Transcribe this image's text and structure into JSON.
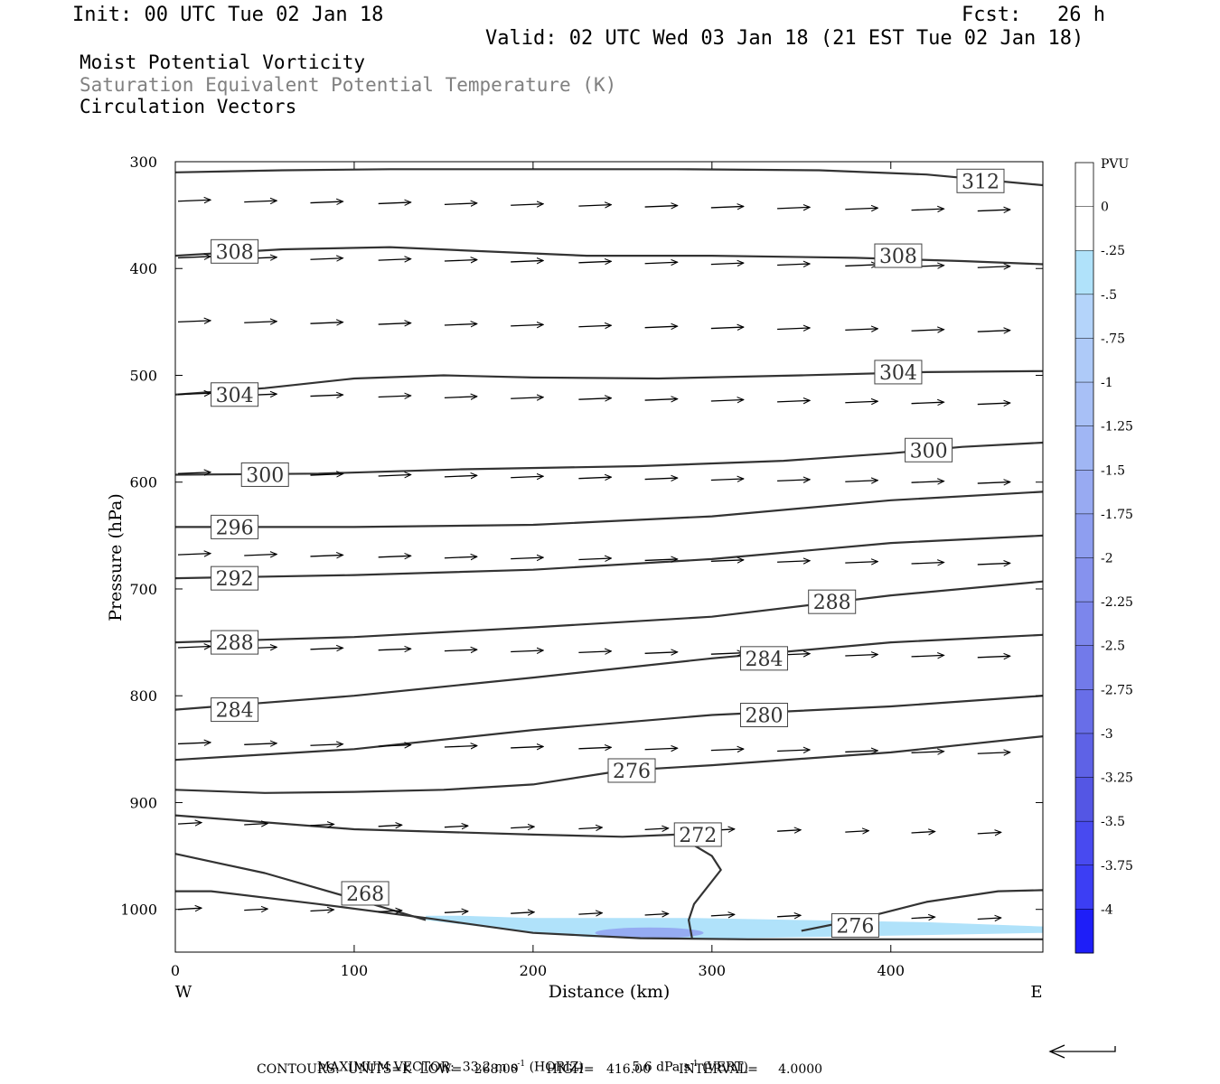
{
  "header": {
    "init": "Init: 00 UTC Tue 02 Jan 18",
    "fcst": "Fcst:   26 h",
    "valid": "Valid: 02 UTC Wed 03 Jan 18 (21 EST Tue 02 Jan 18)",
    "field1": "Moist Potential Vorticity",
    "field2": "Saturation Equivalent Potential Temperature (K)",
    "field3": "Circulation Vectors"
  },
  "footer": {
    "max_label": "MAXIMUM VECTOR:",
    "horiz_val": "33.2",
    "horiz_unit": "m s",
    "horiz_sup": "-1",
    "horiz_tag": "(HORIZ)",
    "vert_val": "5.6",
    "vert_unit": "dPa s",
    "vert_sup": "-1",
    "vert_tag": "(VERT)",
    "contours": "CONTOURS:  UNITS=K  LOW=   268.00       HIGH=   416.00       INTERVAL=     4.0000"
  },
  "chart_data": {
    "type": "line",
    "title": "Moist Potential Vorticity / Saturation Equivalent Potential Temperature (K) / Circulation Vectors",
    "xlabel": "Distance (km)",
    "ylabel": "Pressure (hPa)",
    "xlim": [
      0,
      485
    ],
    "ylim": [
      300,
      1040
    ],
    "y_inverted": true,
    "grid": false,
    "x_ticks": [
      0,
      100,
      200,
      300,
      400
    ],
    "y_ticks": [
      300,
      400,
      500,
      600,
      700,
      800,
      900,
      1000
    ],
    "x_left_label": "W",
    "x_right_label": "E",
    "colorbar": {
      "title": "PVU",
      "labels": [
        "0",
        "-.25",
        "-.5",
        "-.75",
        "-1",
        "-1.25",
        "-1.5",
        "-1.75",
        "-2",
        "-2.25",
        "-2.5",
        "-2.75",
        "-3",
        "-3.25",
        "-3.5",
        "-3.75",
        "-4"
      ],
      "colors": [
        "#ffffff",
        "#ffffff",
        "#b0e2fa",
        "#b4d4fa",
        "#aecaf8",
        "#a8c0f6",
        "#a0b6f4",
        "#98aaf2",
        "#8e9ef0",
        "#8692ee",
        "#7c86ec",
        "#727aea",
        "#686ee8",
        "#5e62e6",
        "#5456e4",
        "#484af0",
        "#3c3ef4",
        "#1e1ef8"
      ]
    },
    "series": [
      {
        "label": "312",
        "x": [
          0,
          60,
          120,
          200,
          280,
          360,
          420,
          485
        ],
        "y": [
          310,
          308,
          307,
          307,
          307,
          308,
          312,
          322
        ],
        "label_at": [
          437,
          318
        ]
      },
      {
        "label": "308",
        "x": [
          0,
          60,
          120,
          160,
          230,
          300,
          380,
          440,
          485
        ],
        "y": [
          388,
          382,
          380,
          383,
          388,
          388,
          390,
          393,
          396
        ],
        "label_at": [
          20,
          384
        ]
      },
      {
        "label": "308",
        "x": [],
        "y": [],
        "label_at": [
          391,
          388
        ]
      },
      {
        "label": "304",
        "x": [
          0,
          50,
          100,
          150,
          200,
          270,
          350,
          420,
          485
        ],
        "y": [
          518,
          512,
          503,
          500,
          502,
          503,
          500,
          497,
          496
        ],
        "label_at": [
          20,
          518
        ]
      },
      {
        "label": "304",
        "x": [],
        "y": [],
        "label_at": [
          391,
          497
        ]
      },
      {
        "label": "300",
        "x": [
          0,
          80,
          160,
          260,
          340,
          400,
          440,
          485
        ],
        "y": [
          593,
          592,
          588,
          585,
          580,
          573,
          567,
          563
        ],
        "label_at": [
          408,
          570
        ]
      },
      {
        "label": "300",
        "x": [],
        "y": [],
        "label_at": [
          37,
          593
        ]
      },
      {
        "label": "296",
        "x": [
          0,
          100,
          200,
          300,
          400,
          485
        ],
        "y": [
          642,
          642,
          640,
          632,
          617,
          609
        ],
        "label_at": [
          20,
          642
        ]
      },
      {
        "label": "292",
        "x": [
          0,
          100,
          200,
          300,
          400,
          485
        ],
        "y": [
          690,
          687,
          682,
          672,
          657,
          650
        ],
        "label_at": [
          20,
          690
        ]
      },
      {
        "label": "288",
        "x": [
          0,
          100,
          200,
          300,
          400,
          485
        ],
        "y": [
          750,
          745,
          736,
          726,
          706,
          693
        ],
        "label_at": [
          20,
          750
        ]
      },
      {
        "label": "288",
        "x": [],
        "y": [],
        "label_at": [
          354,
          712
        ]
      },
      {
        "label": "284",
        "x": [
          0,
          100,
          200,
          300,
          400,
          485
        ],
        "y": [
          813,
          800,
          783,
          765,
          750,
          743
        ],
        "label_at": [
          20,
          813
        ]
      },
      {
        "label": "284",
        "x": [],
        "y": [],
        "label_at": [
          316,
          765
        ]
      },
      {
        "label": "280",
        "x": [
          0,
          100,
          200,
          300,
          400,
          485
        ],
        "y": [
          860,
          850,
          832,
          818,
          810,
          800
        ],
        "label_at": [
          316,
          818
        ]
      },
      {
        "label": "276",
        "x": [
          0,
          50,
          100,
          150,
          200,
          250,
          300,
          400,
          485
        ],
        "y": [
          888,
          891,
          890,
          888,
          883,
          870,
          865,
          853,
          838
        ],
        "label_at": [
          242,
          870
        ]
      },
      {
        "label": "272",
        "x": [
          0,
          100,
          200,
          250,
          280,
          300,
          305,
          290,
          287,
          289
        ],
        "y": [
          912,
          925,
          930,
          932,
          930,
          950,
          963,
          995,
          1010,
          1028
        ],
        "label_at": [
          279,
          930
        ]
      },
      {
        "label": "268",
        "x": [
          0,
          50,
          100,
          140
        ],
        "y": [
          948,
          966,
          990,
          1010
        ],
        "label_at": [
          93,
          985
        ]
      },
      {
        "label": "276",
        "x": [
          350,
          380,
          420,
          460,
          485
        ],
        "y": [
          1020,
          1010,
          993,
          983,
          982
        ],
        "label_at": [
          367,
          1015
        ]
      },
      {
        "label": "",
        "x": [
          0,
          20,
          80,
          140,
          200,
          260,
          320,
          380,
          440,
          485
        ],
        "y": [
          983,
          983,
          995,
          1008,
          1022,
          1027,
          1028,
          1028,
          1028,
          1028
        ],
        "label_at": null
      }
    ],
    "vector_rows": [
      {
        "y": 337,
        "x": [
          0,
          37,
          74,
          112,
          149,
          186,
          224,
          261,
          298,
          335,
          373,
          410,
          447
        ]
      },
      {
        "y": 390,
        "x": [
          0,
          37,
          74,
          112,
          149,
          186,
          224,
          261,
          298,
          335,
          373,
          410,
          447
        ]
      },
      {
        "y": 450,
        "x": [
          0,
          37,
          74,
          112,
          149,
          186,
          224,
          261,
          298,
          335,
          373,
          410,
          447
        ]
      },
      {
        "y": 518,
        "x": [
          0,
          37,
          74,
          112,
          149,
          186,
          224,
          261,
          298,
          335,
          373,
          410,
          447
        ]
      },
      {
        "y": 592,
        "x": [
          0,
          37,
          74,
          112,
          149,
          186,
          224,
          261,
          298,
          335,
          373,
          410,
          447
        ]
      },
      {
        "y": 668,
        "x": [
          0,
          37,
          74,
          112,
          149,
          186,
          224,
          261,
          298,
          335,
          373,
          410,
          447
        ]
      },
      {
        "y": 755,
        "x": [
          0,
          37,
          74,
          112,
          149,
          186,
          224,
          261,
          298,
          335,
          373,
          410,
          447
        ]
      },
      {
        "y": 845,
        "x": [
          0,
          37,
          74,
          112,
          149,
          186,
          224,
          261,
          298,
          335,
          373,
          410,
          447
        ]
      },
      {
        "y": 920,
        "x": [
          0,
          37,
          74,
          112,
          149,
          186,
          224,
          261,
          298,
          335,
          373,
          410,
          447
        ]
      },
      {
        "y": 1000,
        "x": [
          0,
          37,
          74,
          112,
          149,
          186,
          224,
          261,
          298,
          335,
          373,
          410,
          447
        ]
      }
    ],
    "pv_region": {
      "x": [
        140,
        160,
        200,
        240,
        290,
        350,
        420,
        485,
        485,
        420,
        350,
        290,
        230,
        180,
        140
      ],
      "y": [
        1006,
        1006,
        1008,
        1008,
        1008,
        1010,
        1012,
        1016,
        1022,
        1024,
        1026,
        1028,
        1026,
        1018,
        1010
      ]
    }
  }
}
